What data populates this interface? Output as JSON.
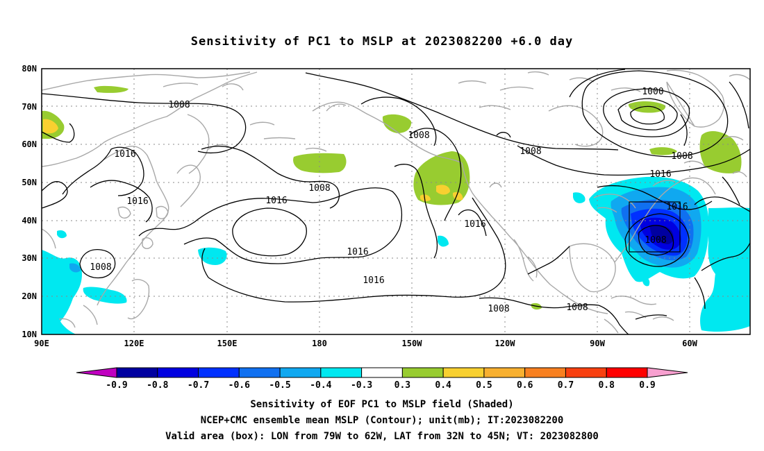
{
  "title": "Sensitivity of PC1 to MSLP at 2023082200 +6.0 day",
  "map": {
    "lon_labels": [
      "90E",
      "120E",
      "150E",
      "180",
      "150W",
      "120W",
      "90W",
      "60W"
    ],
    "lat_labels": [
      "80N",
      "70N",
      "60N",
      "50N",
      "40N",
      "30N",
      "20N",
      "10N"
    ],
    "contour_labels": [
      {
        "text": "1008"
      },
      {
        "text": "1016"
      },
      {
        "text": "1016"
      },
      {
        "text": "1008"
      },
      {
        "text": "1016"
      },
      {
        "text": "1016"
      },
      {
        "text": "1008"
      },
      {
        "text": "1008"
      },
      {
        "text": "1016"
      },
      {
        "text": "1008"
      },
      {
        "text": "1016"
      },
      {
        "text": "1000"
      },
      {
        "text": "1008"
      },
      {
        "text": "1008"
      },
      {
        "text": "1016"
      },
      {
        "text": "1016"
      },
      {
        "text": "1008"
      },
      {
        "text": "1008"
      },
      {
        "text": "1008"
      }
    ]
  },
  "colorbar": {
    "colors": [
      "#c000c0",
      "#0000a0",
      "#0000e0",
      "#0030ff",
      "#1070f0",
      "#10a8f0",
      "#00e8f0",
      "#ffffff",
      "#98cc30",
      "#f8d030",
      "#f8b030",
      "#f88020",
      "#f84010",
      "#ff0000",
      "#f8a0d0"
    ],
    "labels": [
      "-0.9",
      "-0.8",
      "-0.7",
      "-0.6",
      "-0.5",
      "-0.4",
      "-0.3",
      "0.3",
      "0.4",
      "0.5",
      "0.6",
      "0.7",
      "0.8",
      "0.9"
    ]
  },
  "footer": {
    "line1": "Sensitivity of EOF PC1 to MSLP field (Shaded)",
    "line2": "NCEP+CMC ensemble mean MSLP (Contour); unit(mb); IT:2023082200",
    "line3": "Valid area (box): LON from 79W to 62W, LAT from 32N to 45N; VT: 2023082800"
  }
}
